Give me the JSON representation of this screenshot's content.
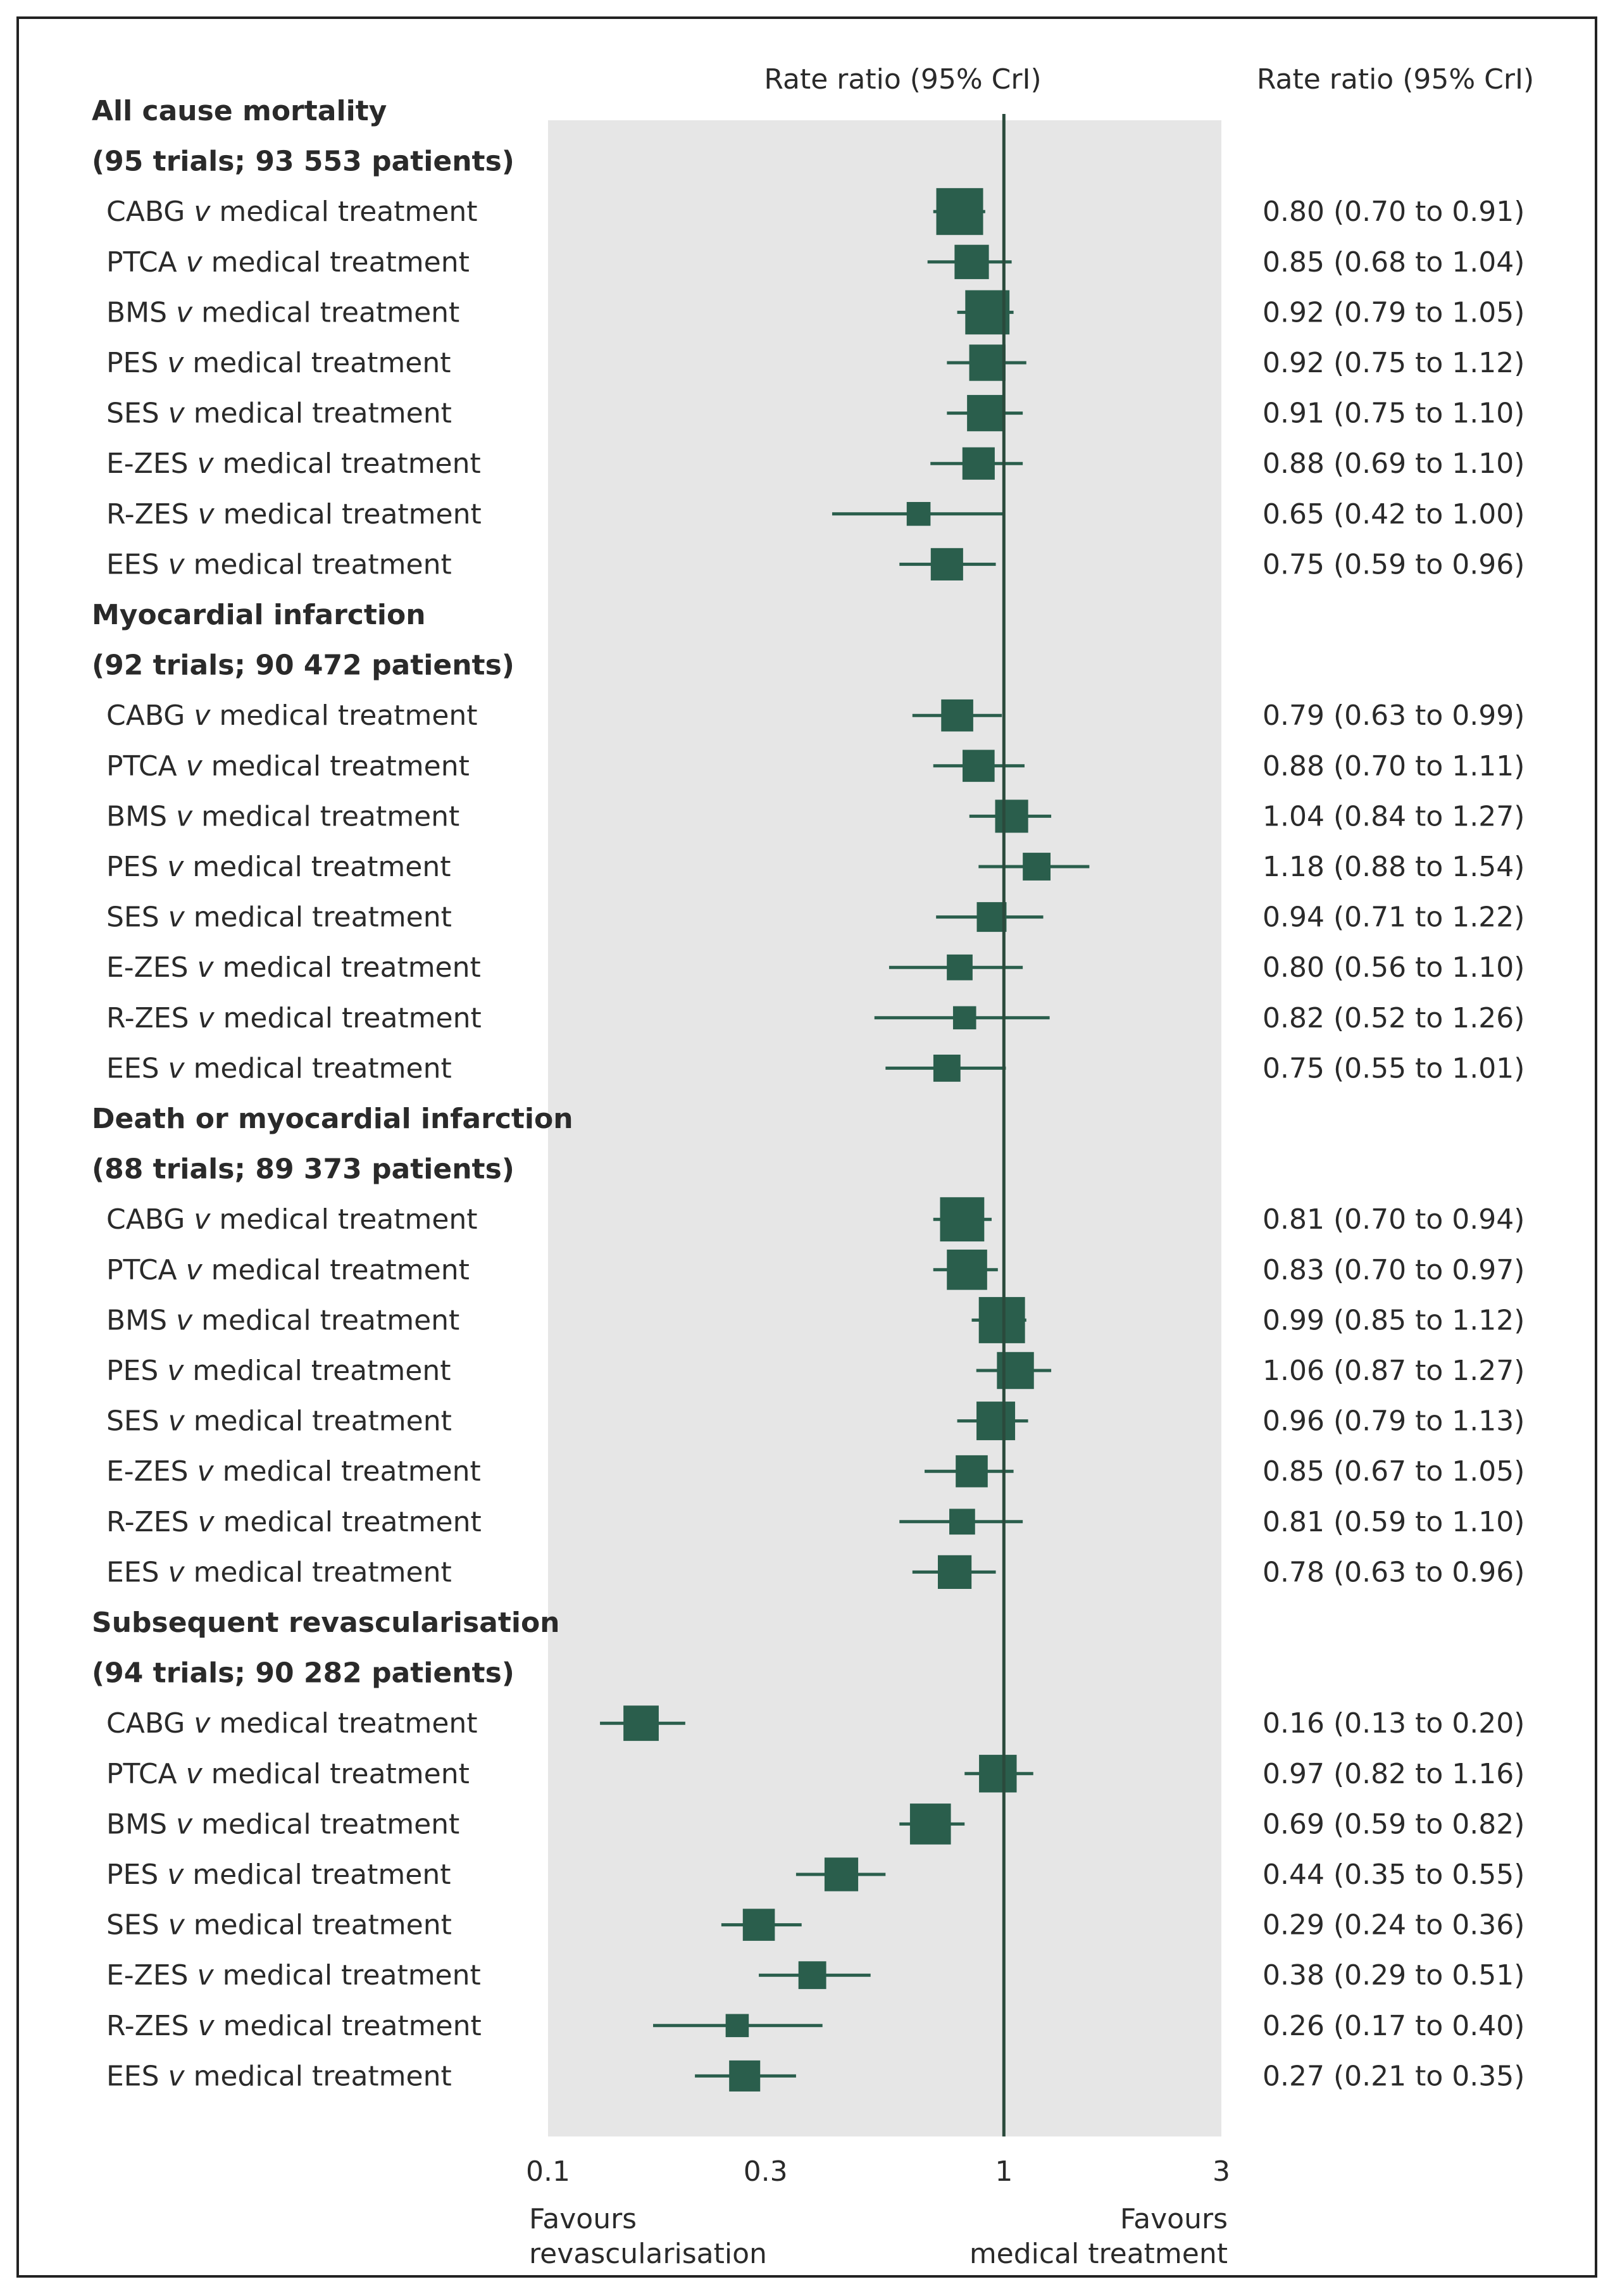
{
  "chart_data": {
    "type": "forest",
    "column_headers": {
      "plot": "Rate ratio (95% CrI)",
      "values": "Rate ratio (95% CrI)"
    },
    "x_axis": {
      "scale": "log",
      "range": [
        0.1,
        3
      ],
      "ticks": [
        {
          "value": 0.1,
          "label": "0.1"
        },
        {
          "value": 0.3,
          "label": "0.3"
        },
        {
          "value": 1,
          "label": "1"
        },
        {
          "value": 3,
          "label": "3"
        }
      ],
      "reference_line": 1,
      "favours_left": [
        "Favours",
        "revascularisation"
      ],
      "favours_right": [
        "Favours",
        "medical treatment"
      ]
    },
    "groups": [
      {
        "title": "All cause mortality",
        "subtitle": "(95 trials; 93 553 patients)",
        "rows": [
          {
            "label": "CABG v medical treatment",
            "est": 0.8,
            "lo": 0.7,
            "hi": 0.91,
            "ci_text": "0.80 (0.70 to 0.91)",
            "weight": 1.0
          },
          {
            "label": "PTCA v medical treatment",
            "est": 0.85,
            "lo": 0.68,
            "hi": 1.04,
            "ci_text": "0.85 (0.68 to 1.04)",
            "weight": 0.62
          },
          {
            "label": "BMS v medical treatment",
            "est": 0.92,
            "lo": 0.79,
            "hi": 1.05,
            "ci_text": "0.92 (0.79 to 1.05)",
            "weight": 0.92
          },
          {
            "label": "PES v medical treatment",
            "est": 0.92,
            "lo": 0.75,
            "hi": 1.12,
            "ci_text": "0.92 (0.75 to 1.12)",
            "weight": 0.68
          },
          {
            "label": "SES v medical treatment",
            "est": 0.91,
            "lo": 0.75,
            "hi": 1.1,
            "ci_text": "0.91 (0.75 to 1.10)",
            "weight": 0.68
          },
          {
            "label": "E-ZES v medical treatment",
            "est": 0.88,
            "lo": 0.69,
            "hi": 1.1,
            "ci_text": "0.88 (0.69 to 1.10)",
            "weight": 0.56
          },
          {
            "label": "R-ZES v medical treatment",
            "est": 0.65,
            "lo": 0.42,
            "hi": 1.0,
            "ci_text": "0.65 (0.42 to 1.00)",
            "weight": 0.3
          },
          {
            "label": "EES v medical treatment",
            "est": 0.75,
            "lo": 0.59,
            "hi": 0.96,
            "ci_text": "0.75 (0.59 to 0.96)",
            "weight": 0.56
          }
        ]
      },
      {
        "title": "Myocardial infarction",
        "subtitle": "(92 trials; 90 472 patients)",
        "rows": [
          {
            "label": "CABG v medical treatment",
            "est": 0.79,
            "lo": 0.63,
            "hi": 0.99,
            "ci_text": "0.79 (0.63 to 0.99)",
            "weight": 0.55
          },
          {
            "label": "PTCA v medical treatment",
            "est": 0.88,
            "lo": 0.7,
            "hi": 1.11,
            "ci_text": "0.88 (0.70 to 1.11)",
            "weight": 0.55
          },
          {
            "label": "BMS v medical treatment",
            "est": 1.04,
            "lo": 0.84,
            "hi": 1.27,
            "ci_text": "1.04 (0.84 to 1.27)",
            "weight": 0.58
          },
          {
            "label": "PES v medical treatment",
            "est": 1.18,
            "lo": 0.88,
            "hi": 1.54,
            "ci_text": "1.18 (0.88 to 1.54)",
            "weight": 0.42
          },
          {
            "label": "SES v medical treatment",
            "est": 0.94,
            "lo": 0.71,
            "hi": 1.22,
            "ci_text": "0.94 (0.71 to 1.22)",
            "weight": 0.48
          },
          {
            "label": "E-ZES v medical treatment",
            "est": 0.8,
            "lo": 0.56,
            "hi": 1.1,
            "ci_text": "0.80 (0.56 to 1.10)",
            "weight": 0.36
          },
          {
            "label": "R-ZES v medical treatment",
            "est": 0.82,
            "lo": 0.52,
            "hi": 1.26,
            "ci_text": "0.82 (0.52 to 1.26)",
            "weight": 0.28
          },
          {
            "label": "EES v medical treatment",
            "est": 0.75,
            "lo": 0.55,
            "hi": 1.01,
            "ci_text": "0.75 (0.55 to 1.01)",
            "weight": 0.4
          }
        ]
      },
      {
        "title": "Death or myocardial infarction",
        "subtitle": "(88 trials; 89 373 patients)",
        "rows": [
          {
            "label": "CABG v medical treatment",
            "est": 0.81,
            "lo": 0.7,
            "hi": 0.94,
            "ci_text": "0.81 (0.70 to 0.94)",
            "weight": 0.92
          },
          {
            "label": "PTCA v medical treatment",
            "est": 0.83,
            "lo": 0.7,
            "hi": 0.97,
            "ci_text": "0.83 (0.70 to 0.97)",
            "weight": 0.8
          },
          {
            "label": "BMS v medical treatment",
            "est": 0.99,
            "lo": 0.85,
            "hi": 1.12,
            "ci_text": "0.99 (0.85 to 1.12)",
            "weight": 0.98
          },
          {
            "label": "PES v medical treatment",
            "est": 1.06,
            "lo": 0.87,
            "hi": 1.27,
            "ci_text": "1.06 (0.87 to 1.27)",
            "weight": 0.7
          },
          {
            "label": "SES v medical treatment",
            "est": 0.96,
            "lo": 0.79,
            "hi": 1.13,
            "ci_text": "0.96 (0.79 to 1.13)",
            "weight": 0.75
          },
          {
            "label": "E-ZES v medical treatment",
            "est": 0.85,
            "lo": 0.67,
            "hi": 1.05,
            "ci_text": "0.85 (0.67 to 1.05)",
            "weight": 0.55
          },
          {
            "label": "R-ZES v medical treatment",
            "est": 0.81,
            "lo": 0.59,
            "hi": 1.1,
            "ci_text": "0.81 (0.59 to 1.10)",
            "weight": 0.36
          },
          {
            "label": "EES v medical treatment",
            "est": 0.78,
            "lo": 0.63,
            "hi": 0.96,
            "ci_text": "0.78 (0.63 to 0.96)",
            "weight": 0.6
          }
        ]
      },
      {
        "title": "Subsequent revascularisation",
        "subtitle": "(94 trials; 90 282 patients)",
        "rows": [
          {
            "label": "CABG v medical treatment",
            "est": 0.16,
            "lo": 0.13,
            "hi": 0.2,
            "ci_text": "0.16 (0.13 to 0.20)",
            "weight": 0.65
          },
          {
            "label": "PTCA v medical treatment",
            "est": 0.97,
            "lo": 0.82,
            "hi": 1.16,
            "ci_text": "0.97 (0.82 to 1.16)",
            "weight": 0.72
          },
          {
            "label": "BMS v medical treatment",
            "est": 0.69,
            "lo": 0.59,
            "hi": 0.82,
            "ci_text": "0.69 (0.59 to 0.82)",
            "weight": 0.82
          },
          {
            "label": "PES v medical treatment",
            "est": 0.44,
            "lo": 0.35,
            "hi": 0.55,
            "ci_text": "0.44 (0.35 to 0.55)",
            "weight": 0.6
          },
          {
            "label": "SES v medical treatment",
            "est": 0.29,
            "lo": 0.24,
            "hi": 0.36,
            "ci_text": "0.29 (0.24 to 0.36)",
            "weight": 0.55
          },
          {
            "label": "E-ZES v medical treatment",
            "est": 0.38,
            "lo": 0.29,
            "hi": 0.51,
            "ci_text": "0.38 (0.29 to 0.51)",
            "weight": 0.42
          },
          {
            "label": "R-ZES v medical treatment",
            "est": 0.26,
            "lo": 0.17,
            "hi": 0.4,
            "ci_text": "0.26 (0.17 to 0.40)",
            "weight": 0.28
          },
          {
            "label": "EES v medical treatment",
            "est": 0.27,
            "lo": 0.21,
            "hi": 0.35,
            "ci_text": "0.27 (0.21 to 0.35)",
            "weight": 0.52
          }
        ]
      }
    ],
    "colors": {
      "marker": "#2a5e4c",
      "plot_background": "#e6e6e6",
      "reference_line": "#2a4a3c",
      "text": "#2a2a2a"
    }
  }
}
